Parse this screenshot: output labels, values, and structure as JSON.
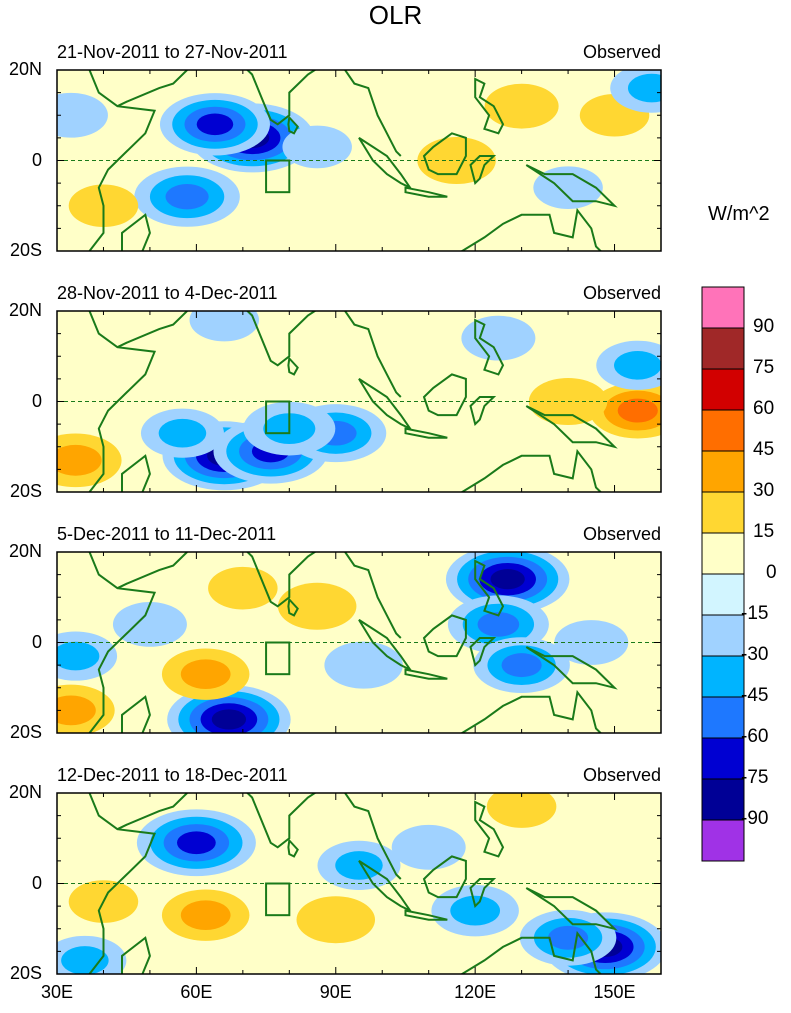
{
  "chart_data": {
    "type": "heatmap",
    "title": "OLR",
    "units": "W/m^2",
    "x_ticks": [
      "30E",
      "60E",
      "90E",
      "120E",
      "150E"
    ],
    "y_ticks": [
      "20N",
      "0",
      "20S"
    ],
    "lon_range": [
      30,
      160
    ],
    "lat_range": [
      -20,
      20
    ],
    "box_region": {
      "lon": [
        75,
        80
      ],
      "lat": [
        -7,
        0
      ]
    },
    "colorbar": {
      "labels": [
        "90",
        "75",
        "60",
        "45",
        "30",
        "15",
        "0",
        "-15",
        "-30",
        "-45",
        "-60",
        "-75",
        "-90"
      ],
      "colors": [
        "#ff73b9",
        "#a02828",
        "#d20000",
        "#ff6e00",
        "#ffa500",
        "#ffd732",
        "#ffffc8",
        "#d2f5ff",
        "#a0d2ff",
        "#00b4ff",
        "#1e78ff",
        "#0000d2",
        "#000096",
        "#a032e6"
      ]
    },
    "panels": [
      {
        "label": "21-Nov-2011 to 27-Nov-2011",
        "tag": "Observed",
        "features": [
          {
            "lon": 72,
            "lat": 5,
            "value": -75
          },
          {
            "lon": 64,
            "lat": 8,
            "value": -60
          },
          {
            "lon": 58,
            "lat": -8,
            "value": -55
          },
          {
            "lon": 86,
            "lat": 3,
            "value": -15
          },
          {
            "lon": 116,
            "lat": 0,
            "value": 25
          },
          {
            "lon": 130,
            "lat": 12,
            "value": 20
          },
          {
            "lon": 150,
            "lat": 10,
            "value": 15
          },
          {
            "lon": 100,
            "lat": -14,
            "value": 12
          },
          {
            "lon": 118,
            "lat": -12,
            "value": 10
          },
          {
            "lon": 158,
            "lat": 16,
            "value": -30
          },
          {
            "lon": 140,
            "lat": -6,
            "value": -15
          },
          {
            "lon": 33,
            "lat": 10,
            "value": -20
          },
          {
            "lon": 40,
            "lat": -10,
            "value": 15
          }
        ]
      },
      {
        "label": "28-Nov-2011 to 4-Dec-2011",
        "tag": "Observed",
        "features": [
          {
            "lon": 66,
            "lat": -12,
            "value": -75
          },
          {
            "lon": 76,
            "lat": -11,
            "value": -65
          },
          {
            "lon": 90,
            "lat": -7,
            "value": -50
          },
          {
            "lon": 80,
            "lat": -6,
            "value": -40
          },
          {
            "lon": 57,
            "lat": -7,
            "value": -30
          },
          {
            "lon": 155,
            "lat": -2,
            "value": 45
          },
          {
            "lon": 140,
            "lat": 0,
            "value": 25
          },
          {
            "lon": 34,
            "lat": -13,
            "value": 40
          },
          {
            "lon": 125,
            "lat": 14,
            "value": -20
          },
          {
            "lon": 155,
            "lat": 8,
            "value": -30
          },
          {
            "lon": 66,
            "lat": 18,
            "value": -15
          },
          {
            "lon": 110,
            "lat": 10,
            "value": 12
          },
          {
            "lon": 40,
            "lat": 5,
            "value": 10
          }
        ]
      },
      {
        "label": "5-Dec-2011 to 11-Dec-2011",
        "tag": "Observed",
        "features": [
          {
            "lon": 127,
            "lat": 14,
            "value": -75
          },
          {
            "lon": 125,
            "lat": 4,
            "value": -50
          },
          {
            "lon": 130,
            "lat": -5,
            "value": -45
          },
          {
            "lon": 67,
            "lat": -17,
            "value": -75
          },
          {
            "lon": 62,
            "lat": -7,
            "value": 35
          },
          {
            "lon": 86,
            "lat": 8,
            "value": 25
          },
          {
            "lon": 70,
            "lat": 12,
            "value": 15
          },
          {
            "lon": 96,
            "lat": -5,
            "value": -25
          },
          {
            "lon": 33,
            "lat": -15,
            "value": 35
          },
          {
            "lon": 110,
            "lat": -10,
            "value": 10
          },
          {
            "lon": 145,
            "lat": 0,
            "value": -20
          },
          {
            "lon": 34,
            "lat": -3,
            "value": -30
          },
          {
            "lon": 50,
            "lat": 4,
            "value": -20
          }
        ]
      },
      {
        "label": "12-Dec-2011 to 18-Dec-2011",
        "tag": "Observed",
        "features": [
          {
            "lon": 60,
            "lat": 9,
            "value": -70
          },
          {
            "lon": 148,
            "lat": -14,
            "value": -75
          },
          {
            "lon": 140,
            "lat": -12,
            "value": -45
          },
          {
            "lon": 95,
            "lat": 4,
            "value": -30
          },
          {
            "lon": 120,
            "lat": -6,
            "value": -35
          },
          {
            "lon": 62,
            "lat": -7,
            "value": 35
          },
          {
            "lon": 90,
            "lat": -8,
            "value": 25
          },
          {
            "lon": 40,
            "lat": -4,
            "value": 15
          },
          {
            "lon": 130,
            "lat": 17,
            "value": 15
          },
          {
            "lon": 155,
            "lat": 10,
            "value": 12
          },
          {
            "lon": 110,
            "lat": 8,
            "value": -20
          },
          {
            "lon": 36,
            "lat": -17,
            "value": -30
          },
          {
            "lon": 100,
            "lat": -17,
            "value": 10
          }
        ]
      }
    ]
  }
}
